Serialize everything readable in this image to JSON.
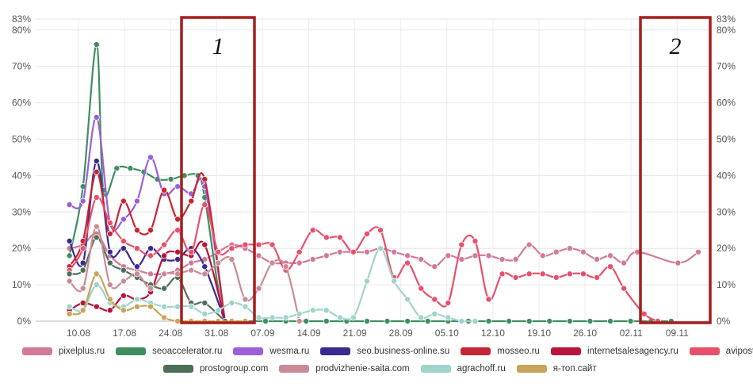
{
  "chart_data": {
    "type": "line",
    "ylim": [
      0,
      83
    ],
    "yticks": [
      "0%",
      "10%",
      "20%",
      "30%",
      "40%",
      "50%",
      "60%",
      "70%",
      "80%",
      "83%"
    ],
    "ytick_values": [
      0,
      10,
      20,
      30,
      40,
      50,
      60,
      70,
      80,
      83
    ],
    "xticks": [
      "10.08",
      "17.08",
      "24.08",
      "31.08",
      "07.09",
      "14.09",
      "21.09",
      "28.09",
      "05.10",
      "12.10",
      "19.10",
      "26.10",
      "02.11",
      "09.11"
    ],
    "grid": true,
    "annotations": [
      {
        "label": "1",
        "x_range": [
          "27.08",
          "03.09"
        ]
      },
      {
        "label": "2",
        "x_range": [
          "03.11",
          "13.11"
        ]
      }
    ],
    "series": [
      {
        "name": "pixelplus.ru",
        "color": "#d17a9a",
        "values": [
          [
            5,
            20
          ],
          [
            7,
            21
          ],
          [
            9,
            24
          ],
          [
            11,
            18
          ],
          [
            13,
            15
          ],
          [
            15,
            14
          ],
          [
            17,
            13
          ],
          [
            19,
            13
          ],
          [
            21,
            14
          ],
          [
            23,
            16
          ],
          [
            25,
            17
          ],
          [
            27,
            19
          ],
          [
            29,
            21
          ],
          [
            31,
            20
          ],
          [
            33,
            18
          ],
          [
            35,
            16
          ],
          [
            37,
            16
          ],
          [
            39,
            16
          ],
          [
            41,
            17
          ],
          [
            43,
            18
          ],
          [
            45,
            19
          ],
          [
            47,
            19
          ],
          [
            49,
            19
          ],
          [
            51,
            20
          ],
          [
            53,
            19
          ],
          [
            55,
            18
          ],
          [
            57,
            17
          ],
          [
            59,
            15
          ],
          [
            61,
            18
          ],
          [
            63,
            17
          ],
          [
            65,
            18
          ],
          [
            67,
            18
          ],
          [
            69,
            17
          ],
          [
            71,
            17
          ],
          [
            73,
            21
          ],
          [
            75,
            18
          ],
          [
            77,
            19
          ],
          [
            79,
            20
          ],
          [
            81,
            19
          ],
          [
            83,
            17
          ],
          [
            85,
            18
          ],
          [
            87,
            16
          ],
          [
            89,
            19
          ],
          [
            95,
            16
          ],
          [
            98,
            19
          ]
        ]
      },
      {
        "name": "seoaccelerator.ru",
        "color": "#3f8f5e",
        "values": [
          [
            5,
            18
          ],
          [
            7,
            37
          ],
          [
            9,
            76
          ],
          [
            10,
            36
          ],
          [
            12,
            42
          ],
          [
            14,
            42
          ],
          [
            16,
            41
          ],
          [
            18,
            39
          ],
          [
            20,
            39
          ],
          [
            22,
            40
          ],
          [
            24,
            40
          ],
          [
            25,
            34
          ],
          [
            28,
            0
          ],
          [
            31,
            0
          ],
          [
            34,
            0
          ],
          [
            37,
            0
          ],
          [
            40,
            0
          ],
          [
            43,
            0
          ],
          [
            46,
            0
          ],
          [
            49,
            0
          ],
          [
            52,
            0
          ],
          [
            55,
            0
          ],
          [
            58,
            0
          ],
          [
            61,
            0
          ],
          [
            64,
            0
          ],
          [
            67,
            0
          ],
          [
            70,
            0
          ],
          [
            73,
            0
          ],
          [
            76,
            0
          ],
          [
            79,
            0
          ],
          [
            82,
            0
          ],
          [
            85,
            0
          ],
          [
            88,
            0
          ],
          [
            91,
            0
          ],
          [
            94,
            0
          ]
        ]
      },
      {
        "name": "wesma.ru",
        "color": "#9b5fdc",
        "values": [
          [
            5,
            32
          ],
          [
            7,
            33
          ],
          [
            9,
            56
          ],
          [
            11,
            27
          ],
          [
            13,
            28
          ],
          [
            15,
            33
          ],
          [
            17,
            45
          ],
          [
            19,
            35
          ],
          [
            21,
            37
          ],
          [
            23,
            35
          ],
          [
            25,
            37
          ],
          [
            28,
            0
          ]
        ]
      },
      {
        "name": "seo.business-online.su",
        "color": "#3a2a90",
        "values": [
          [
            5,
            22
          ],
          [
            7,
            16
          ],
          [
            9,
            44
          ],
          [
            11,
            19
          ],
          [
            13,
            20
          ],
          [
            15,
            15
          ],
          [
            17,
            20
          ],
          [
            19,
            17
          ],
          [
            21,
            17
          ],
          [
            23,
            20
          ],
          [
            25,
            15
          ],
          [
            28,
            0
          ]
        ]
      },
      {
        "name": "mosseo.ru",
        "color": "#c62535",
        "values": [
          [
            5,
            15
          ],
          [
            7,
            22
          ],
          [
            9,
            41
          ],
          [
            11,
            24
          ],
          [
            13,
            33
          ],
          [
            15,
            25
          ],
          [
            17,
            25
          ],
          [
            19,
            36
          ],
          [
            21,
            28
          ],
          [
            23,
            33
          ],
          [
            25,
            39
          ],
          [
            28,
            0
          ]
        ]
      },
      {
        "name": "internetsalesagency.ru",
        "color": "#b8143c",
        "values": [
          [
            5,
            3
          ],
          [
            7,
            5
          ],
          [
            9,
            4
          ],
          [
            11,
            3
          ],
          [
            13,
            7
          ],
          [
            15,
            6
          ],
          [
            17,
            8
          ],
          [
            19,
            18
          ],
          [
            21,
            19
          ],
          [
            23,
            18
          ],
          [
            25,
            21
          ],
          [
            28,
            0
          ]
        ]
      },
      {
        "name": "avipost.ru",
        "color": "#e8506a",
        "values": [
          [
            5,
            14
          ],
          [
            7,
            20
          ],
          [
            9,
            34
          ],
          [
            11,
            27
          ],
          [
            13,
            22
          ],
          [
            15,
            20
          ],
          [
            17,
            18
          ],
          [
            19,
            21
          ],
          [
            21,
            25
          ],
          [
            23,
            19
          ],
          [
            25,
            32
          ],
          [
            27,
            19
          ],
          [
            29,
            20
          ],
          [
            31,
            21
          ],
          [
            33,
            21
          ],
          [
            35,
            21
          ],
          [
            37,
            14
          ],
          [
            39,
            19
          ],
          [
            41,
            25
          ],
          [
            43,
            23
          ],
          [
            45,
            23
          ],
          [
            47,
            19
          ],
          [
            49,
            24
          ],
          [
            51,
            25
          ],
          [
            53,
            12
          ],
          [
            55,
            16
          ],
          [
            57,
            9
          ],
          [
            59,
            6
          ],
          [
            61,
            5
          ],
          [
            63,
            21
          ],
          [
            65,
            22
          ],
          [
            67,
            6
          ],
          [
            69,
            13
          ],
          [
            71,
            12
          ],
          [
            73,
            13
          ],
          [
            75,
            13
          ],
          [
            77,
            12
          ],
          [
            79,
            13
          ],
          [
            81,
            13
          ],
          [
            83,
            12
          ],
          [
            85,
            15
          ],
          [
            87,
            9
          ],
          [
            90,
            2
          ],
          [
            92,
            0
          ]
        ]
      },
      {
        "name": "prostogroup.com",
        "color": "#4e6e5a",
        "values": [
          [
            5,
            13
          ],
          [
            7,
            14
          ],
          [
            9,
            23
          ],
          [
            11,
            16
          ],
          [
            13,
            14
          ],
          [
            15,
            12
          ],
          [
            17,
            10
          ],
          [
            19,
            9
          ],
          [
            21,
            12
          ],
          [
            23,
            5
          ],
          [
            25,
            5
          ],
          [
            28,
            0
          ]
        ]
      },
      {
        "name": "prodvizhenie-saita.com",
        "color": "#c98b95",
        "values": [
          [
            5,
            11
          ],
          [
            7,
            9
          ],
          [
            9,
            26
          ],
          [
            11,
            10
          ],
          [
            13,
            11
          ],
          [
            15,
            13
          ],
          [
            17,
            9
          ],
          [
            19,
            13
          ],
          [
            21,
            13
          ],
          [
            23,
            14
          ],
          [
            25,
            13
          ],
          [
            27,
            16
          ],
          [
            29,
            17
          ],
          [
            31,
            6
          ],
          [
            33,
            9
          ],
          [
            35,
            16
          ],
          [
            37,
            15
          ],
          [
            39,
            0
          ]
        ]
      },
      {
        "name": "agrachoff.ru",
        "color": "#9fd4cb",
        "values": [
          [
            5,
            4
          ],
          [
            7,
            3
          ],
          [
            9,
            10
          ],
          [
            11,
            5
          ],
          [
            13,
            4
          ],
          [
            15,
            6
          ],
          [
            17,
            5
          ],
          [
            19,
            4
          ],
          [
            21,
            4
          ],
          [
            23,
            4
          ],
          [
            25,
            2
          ],
          [
            27,
            3
          ],
          [
            29,
            5
          ],
          [
            31,
            4
          ],
          [
            33,
            1
          ],
          [
            35,
            1
          ],
          [
            37,
            1
          ],
          [
            39,
            2
          ],
          [
            41,
            3
          ],
          [
            43,
            3
          ],
          [
            45,
            1
          ],
          [
            47,
            1
          ],
          [
            49,
            11
          ],
          [
            51,
            20
          ],
          [
            53,
            11
          ],
          [
            55,
            6
          ],
          [
            57,
            1
          ],
          [
            59,
            2
          ],
          [
            61,
            1
          ],
          [
            63,
            0
          ],
          [
            65,
            0
          ]
        ]
      },
      {
        "name": "я-топ.сайт",
        "color": "#c8a35a",
        "values": [
          [
            5,
            2
          ],
          [
            7,
            3
          ],
          [
            9,
            13
          ],
          [
            11,
            6
          ],
          [
            13,
            3
          ],
          [
            15,
            4
          ],
          [
            17,
            4
          ],
          [
            19,
            1
          ],
          [
            21,
            0
          ],
          [
            23,
            0
          ],
          [
            25,
            0
          ],
          [
            27,
            0
          ],
          [
            29,
            0
          ],
          [
            31,
            0
          ]
        ]
      }
    ],
    "x_domain": [
      0,
      100
    ]
  },
  "legend": {
    "row1": [
      "pixelplus.ru",
      "seoaccelerator.ru",
      "wesma.ru",
      "seo.business-online.su",
      "mosseo.ru",
      "internetsalesagency.ru",
      "avipost.ru"
    ],
    "row2": [
      "prostogroup.com",
      "prodvizhenie-saita.com",
      "agrachoff.ru",
      "я-топ.сайт"
    ]
  }
}
